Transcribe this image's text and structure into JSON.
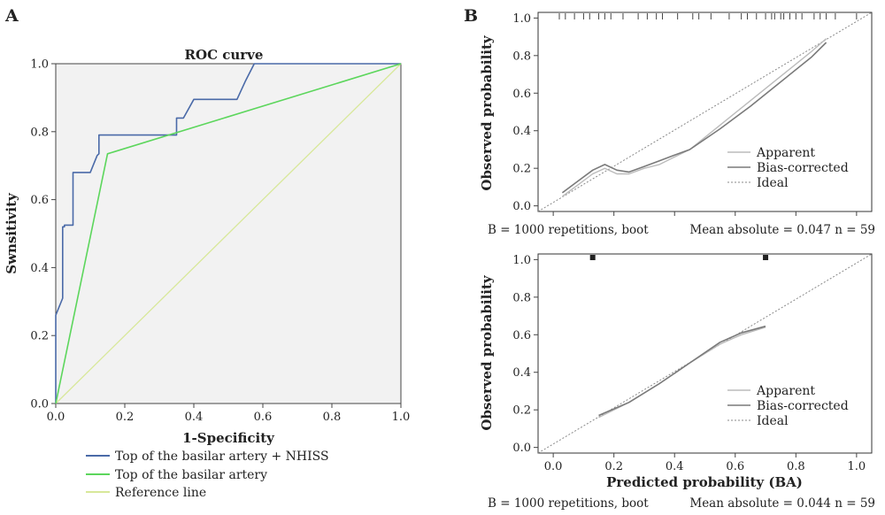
{
  "panel_labels": [
    "A",
    "B"
  ],
  "chart_data": [
    {
      "type": "line",
      "panel": "A",
      "title": "ROC curve",
      "xlabel": "1-Specificity",
      "ylabel": "Swnsitivity",
      "xlim": [
        0,
        1
      ],
      "ylim": [
        0,
        1
      ],
      "xticks": [
        "0.0",
        "0.2",
        "0.4",
        "0.6",
        "0.8",
        "1.0"
      ],
      "yticks": [
        "0.0",
        "0.2",
        "0.4",
        "0.6",
        "0.8",
        "1.0"
      ],
      "grid": false,
      "legend_position": "bottom",
      "series": [
        {
          "name": "Top of the basilar artery + NHISS",
          "color": "#4a6aa8",
          "x": [
            0,
            0,
            0.02,
            0.02,
            0.025,
            0.025,
            0.05,
            0.05,
            0.1,
            0.12,
            0.125,
            0.125,
            0.35,
            0.35,
            0.37,
            0.4,
            0.525,
            0.55,
            0.575,
            1.0
          ],
          "y": [
            0,
            0.26,
            0.31,
            0.52,
            0.52,
            0.525,
            0.525,
            0.68,
            0.68,
            0.73,
            0.735,
            0.79,
            0.79,
            0.84,
            0.84,
            0.895,
            0.895,
            0.95,
            1.0,
            1.0
          ]
        },
        {
          "name": "Top of the basilar artery",
          "color": "#5cd65c",
          "x": [
            0,
            0.15,
            1.0
          ],
          "y": [
            0,
            0.735,
            1.0
          ]
        },
        {
          "name": "Reference line",
          "color": "#d8e89a",
          "x": [
            0,
            1
          ],
          "y": [
            0,
            1
          ]
        }
      ]
    },
    {
      "type": "line",
      "panel": "B-top",
      "title": "",
      "xlabel": "",
      "ylabel": "Observed probability",
      "xlim": [
        -0.05,
        1.05
      ],
      "ylim": [
        -0.03,
        1.03
      ],
      "xticks": [],
      "yticks": [
        "0.0",
        "0.2",
        "0.4",
        "0.6",
        "0.8",
        "1.0"
      ],
      "legend_position": "bottom-right",
      "rug_x": [
        0.02,
        0.04,
        0.07,
        0.1,
        0.12,
        0.15,
        0.17,
        0.19,
        0.23,
        0.28,
        0.31,
        0.34,
        0.36,
        0.41,
        0.46,
        0.48,
        0.52,
        0.58,
        0.62,
        0.64,
        0.67,
        0.7,
        0.72,
        0.73,
        0.75,
        0.76,
        0.78,
        0.8,
        0.82,
        0.86,
        0.88,
        0.9,
        0.93,
        1.0
      ],
      "series": [
        {
          "name": "Apparent",
          "color": "#bbbbbb",
          "x": [
            0.03,
            0.08,
            0.13,
            0.17,
            0.21,
            0.25,
            0.3,
            0.35,
            0.4,
            0.45,
            0.55,
            0.65,
            0.75,
            0.85,
            0.9
          ],
          "y": [
            0.05,
            0.11,
            0.17,
            0.2,
            0.17,
            0.17,
            0.2,
            0.22,
            0.26,
            0.3,
            0.43,
            0.56,
            0.69,
            0.82,
            0.89
          ]
        },
        {
          "name": "Bias-corrected",
          "color": "#7a7a7a",
          "x": [
            0.03,
            0.08,
            0.13,
            0.17,
            0.21,
            0.25,
            0.3,
            0.35,
            0.4,
            0.45,
            0.55,
            0.65,
            0.75,
            0.85,
            0.9
          ],
          "y": [
            0.07,
            0.13,
            0.19,
            0.22,
            0.19,
            0.18,
            0.21,
            0.24,
            0.27,
            0.3,
            0.41,
            0.53,
            0.66,
            0.79,
            0.87
          ]
        },
        {
          "name": "Ideal",
          "color": "#888888",
          "x": [
            -0.05,
            1.05
          ],
          "y": [
            -0.05,
            1.05
          ]
        }
      ],
      "footer_left": "B = 1000 repetitions, boot",
      "footer_right": "Mean absolute = 0.047 n = 59"
    },
    {
      "type": "line",
      "panel": "B-bottom",
      "title": "",
      "xlabel": "Predicted probability (BA)",
      "ylabel": "Observed probability",
      "xlim": [
        -0.05,
        1.05
      ],
      "ylim": [
        -0.03,
        1.03
      ],
      "xticks": [
        "0.0",
        "0.2",
        "0.4",
        "0.6",
        "0.8",
        "1.0"
      ],
      "yticks": [
        "0.0",
        "0.2",
        "0.4",
        "0.6",
        "0.8",
        "1.0"
      ],
      "legend_position": "bottom-right",
      "rug_x": [
        0.13,
        0.7
      ],
      "series": [
        {
          "name": "Apparent",
          "color": "#bbbbbb",
          "x": [
            0.15,
            0.25,
            0.35,
            0.45,
            0.55,
            0.62,
            0.7
          ],
          "y": [
            0.16,
            0.24,
            0.34,
            0.45,
            0.55,
            0.6,
            0.64
          ]
        },
        {
          "name": "Bias-corrected",
          "color": "#7a7a7a",
          "x": [
            0.15,
            0.25,
            0.35,
            0.45,
            0.55,
            0.62,
            0.7
          ],
          "y": [
            0.17,
            0.24,
            0.34,
            0.45,
            0.56,
            0.61,
            0.645
          ]
        },
        {
          "name": "Ideal",
          "color": "#888888",
          "x": [
            -0.05,
            1.05
          ],
          "y": [
            -0.05,
            1.05
          ]
        }
      ],
      "footer_left": "B = 1000 repetitions, boot",
      "footer_right": "Mean absolute = 0.044 n = 59"
    }
  ]
}
